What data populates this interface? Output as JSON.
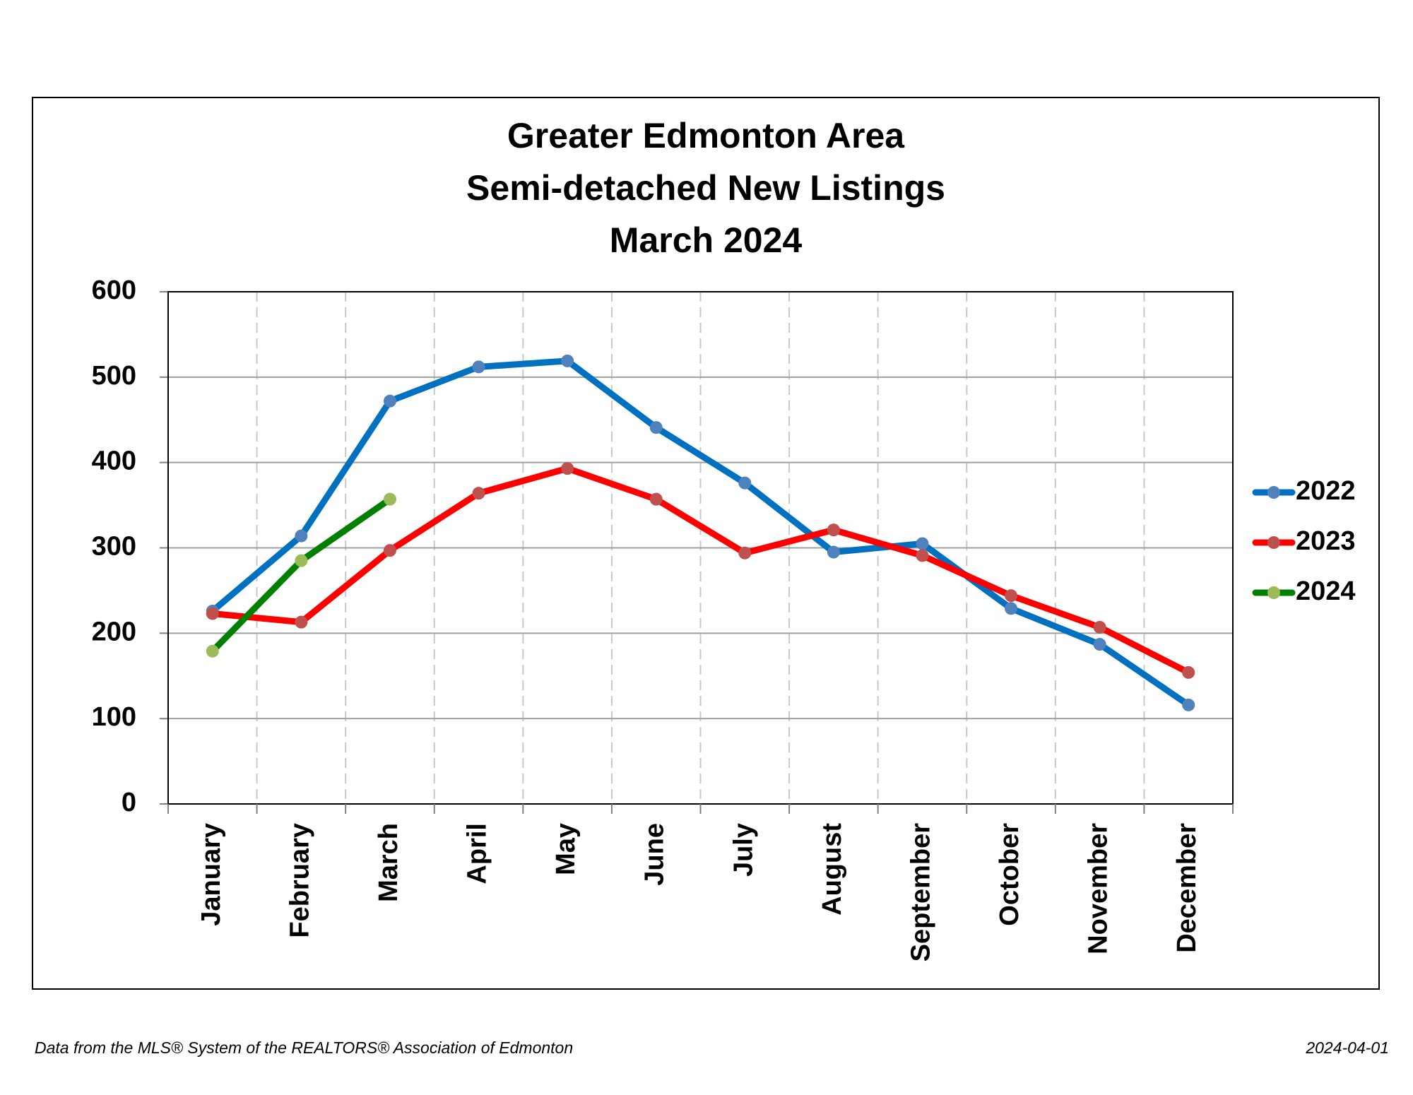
{
  "chart_data": {
    "type": "line",
    "title": [
      "Greater Edmonton Area",
      "Semi-detached New Listings",
      "March 2024"
    ],
    "categories": [
      "January",
      "February",
      "March",
      "April",
      "May",
      "June",
      "July",
      "August",
      "September",
      "October",
      "November",
      "December"
    ],
    "series": [
      {
        "name": "2022",
        "color": "#0070c0",
        "marker_color": "#4f81bd",
        "values": [
          226,
          314,
          472,
          512,
          519,
          441,
          376,
          295,
          305,
          229,
          187,
          116
        ]
      },
      {
        "name": "2023",
        "color": "#ff0000",
        "marker_color": "#c0504d",
        "values": [
          223,
          213,
          297,
          364,
          393,
          357,
          294,
          321,
          291,
          244,
          207,
          154
        ]
      },
      {
        "name": "2024",
        "color": "#008000",
        "marker_color": "#9bbb59",
        "values": [
          179,
          285,
          357,
          null,
          null,
          null,
          null,
          null,
          null,
          null,
          null,
          null
        ]
      }
    ],
    "ylim": [
      0,
      600
    ],
    "yticks": [
      0,
      100,
      200,
      300,
      400,
      500,
      600
    ],
    "grid": true,
    "legend": "right",
    "source": "Data from the MLS® System of the REALTORS® Association of Edmonton",
    "date": "2024-04-01"
  }
}
